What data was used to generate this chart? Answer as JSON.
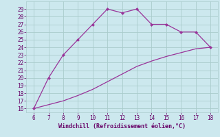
{
  "xlabel": "Windchill (Refroidissement éolien,°C)",
  "x": [
    6,
    7,
    8,
    9,
    10,
    11,
    12,
    13,
    14,
    15,
    16,
    17,
    18
  ],
  "y_upper": [
    16,
    20,
    23,
    25,
    27,
    29,
    28.5,
    29,
    27,
    27,
    26,
    26,
    24
  ],
  "y_lower": [
    16,
    16.5,
    17,
    17.7,
    18.5,
    19.5,
    20.5,
    21.5,
    22.2,
    22.8,
    23.3,
    23.8,
    24
  ],
  "line_color": "#993399",
  "bg_color": "#cce8ee",
  "grid_color": "#aacccc",
  "text_color": "#660066",
  "ylim": [
    15.5,
    30.0
  ],
  "xlim": [
    5.5,
    18.5
  ],
  "yticks": [
    16,
    17,
    18,
    19,
    20,
    21,
    22,
    23,
    24,
    25,
    26,
    27,
    28,
    29
  ],
  "xticks": [
    6,
    7,
    8,
    9,
    10,
    11,
    12,
    13,
    14,
    15,
    16,
    17,
    18
  ],
  "tick_fontsize": 5.5,
  "xlabel_fontsize": 6.0,
  "marker": "D",
  "markersize": 2.0,
  "linewidth": 0.9
}
